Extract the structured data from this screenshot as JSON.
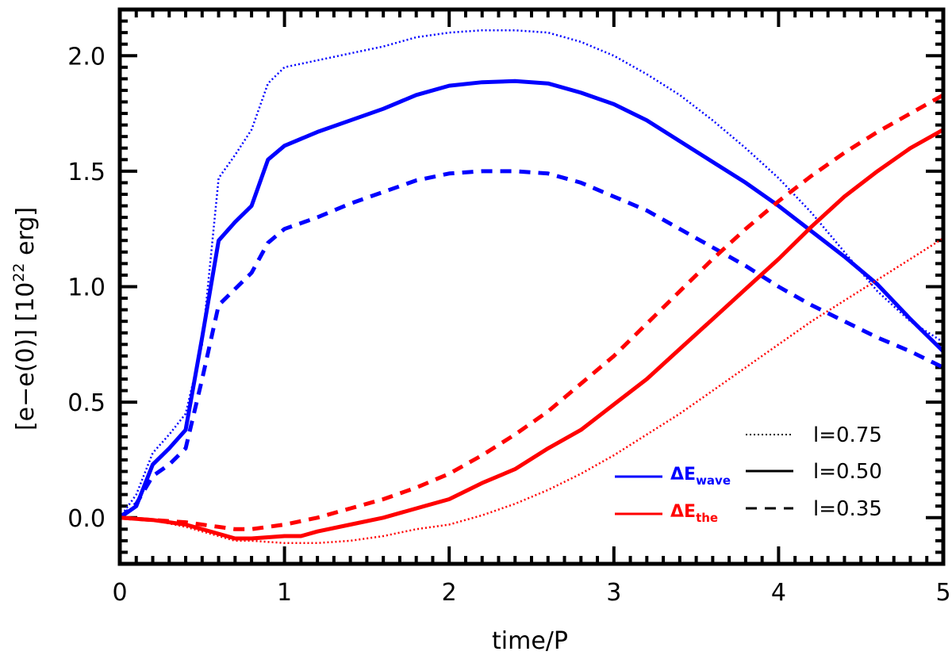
{
  "chart_data": {
    "type": "line",
    "title": "",
    "xlabel": "time/P",
    "ylabel_main": "[e−e(0)] [10",
    "ylabel_exp": "22",
    "ylabel_unit": " erg]",
    "xlim": [
      0,
      5
    ],
    "ylim": [
      -0.2,
      2.2
    ],
    "xticks": [
      0,
      1,
      2,
      3,
      4,
      5
    ],
    "xtick_labels": [
      "0",
      "1",
      "2",
      "3",
      "4",
      "5"
    ],
    "yticks": [
      0.0,
      0.5,
      1.0,
      1.5,
      2.0
    ],
    "ytick_labels": [
      "0.0",
      "0.5",
      "1.0",
      "1.5",
      "2.0"
    ],
    "colors": {
      "wave": "#0000ff",
      "the": "#ff0000",
      "axis": "#000000"
    },
    "legend": {
      "placement": "bottom-right",
      "styles": [
        {
          "label": "l=0.75",
          "dash": "dotted"
        },
        {
          "label": "l=0.50",
          "dash": "solid"
        },
        {
          "label": "l=0.35",
          "dash": "dashed"
        }
      ],
      "colors": [
        {
          "base": "ΔE",
          "sub": "wave",
          "color": "#0000ff"
        },
        {
          "base": "ΔE",
          "sub": "the",
          "color": "#ff0000"
        }
      ]
    },
    "series": [
      {
        "name": "ΔE_wave l=0.75",
        "color": "#0000ff",
        "dash": "dotted",
        "x": [
          0,
          0.1,
          0.2,
          0.3,
          0.4,
          0.5,
          0.6,
          0.7,
          0.8,
          0.9,
          1.0,
          1.2,
          1.4,
          1.6,
          1.8,
          2.0,
          2.2,
          2.4,
          2.6,
          2.8,
          3.0,
          3.2,
          3.4,
          3.6,
          3.8,
          4.0,
          4.2,
          4.4,
          4.6,
          4.8,
          5.0
        ],
        "y": [
          0.0,
          0.1,
          0.28,
          0.36,
          0.45,
          0.75,
          1.47,
          1.57,
          1.68,
          1.88,
          1.95,
          1.98,
          2.01,
          2.04,
          2.08,
          2.1,
          2.11,
          2.11,
          2.1,
          2.06,
          2.0,
          1.92,
          1.83,
          1.72,
          1.6,
          1.47,
          1.32,
          1.15,
          0.98,
          0.85,
          0.76
        ]
      },
      {
        "name": "ΔE_wave l=0.50",
        "color": "#0000ff",
        "dash": "solid",
        "x": [
          0,
          0.1,
          0.2,
          0.3,
          0.4,
          0.5,
          0.6,
          0.7,
          0.8,
          0.9,
          1.0,
          1.2,
          1.4,
          1.6,
          1.8,
          2.0,
          2.2,
          2.4,
          2.6,
          2.8,
          3.0,
          3.2,
          3.4,
          3.6,
          3.8,
          4.0,
          4.2,
          4.4,
          4.6,
          4.8,
          5.0
        ],
        "y": [
          0.0,
          0.05,
          0.23,
          0.3,
          0.38,
          0.78,
          1.2,
          1.28,
          1.35,
          1.55,
          1.61,
          1.67,
          1.72,
          1.77,
          1.83,
          1.87,
          1.885,
          1.89,
          1.88,
          1.84,
          1.79,
          1.72,
          1.63,
          1.54,
          1.45,
          1.35,
          1.24,
          1.13,
          1.01,
          0.86,
          0.72
        ]
      },
      {
        "name": "ΔE_wave l=0.35",
        "color": "#0000ff",
        "dash": "dashed",
        "x": [
          0,
          0.1,
          0.2,
          0.3,
          0.4,
          0.5,
          0.6,
          0.7,
          0.8,
          0.9,
          1.0,
          1.2,
          1.4,
          1.6,
          1.8,
          2.0,
          2.2,
          2.4,
          2.6,
          2.8,
          3.0,
          3.2,
          3.4,
          3.6,
          3.8,
          4.0,
          4.2,
          4.4,
          4.6,
          4.8,
          5.0
        ],
        "y": [
          0.0,
          0.06,
          0.18,
          0.23,
          0.3,
          0.6,
          0.92,
          0.99,
          1.06,
          1.19,
          1.25,
          1.3,
          1.36,
          1.41,
          1.46,
          1.49,
          1.5,
          1.5,
          1.49,
          1.45,
          1.39,
          1.33,
          1.25,
          1.17,
          1.09,
          1.0,
          0.92,
          0.85,
          0.78,
          0.72,
          0.65
        ]
      },
      {
        "name": "ΔE_the l=0.75",
        "color": "#ff0000",
        "dash": "dotted",
        "x": [
          0,
          0.2,
          0.4,
          0.6,
          0.7,
          0.8,
          1.0,
          1.2,
          1.4,
          1.6,
          1.8,
          2.0,
          2.2,
          2.4,
          2.6,
          2.8,
          3.0,
          3.2,
          3.4,
          3.6,
          3.8,
          4.0,
          4.2,
          4.4,
          4.6,
          4.8,
          5.0
        ],
        "y": [
          0.0,
          -0.01,
          -0.04,
          -0.08,
          -0.1,
          -0.1,
          -0.11,
          -0.11,
          -0.1,
          -0.08,
          -0.05,
          -0.03,
          0.01,
          0.06,
          0.12,
          0.19,
          0.27,
          0.36,
          0.45,
          0.55,
          0.65,
          0.75,
          0.85,
          0.94,
          1.03,
          1.12,
          1.21
        ]
      },
      {
        "name": "ΔE_the l=0.50",
        "color": "#ff0000",
        "dash": "solid",
        "x": [
          0,
          0.2,
          0.4,
          0.6,
          0.7,
          0.8,
          1.0,
          1.1,
          1.2,
          1.4,
          1.6,
          1.8,
          2.0,
          2.2,
          2.4,
          2.6,
          2.8,
          3.0,
          3.2,
          3.4,
          3.6,
          3.8,
          4.0,
          4.2,
          4.4,
          4.6,
          4.8,
          5.0
        ],
        "y": [
          0.0,
          -0.01,
          -0.03,
          -0.07,
          -0.09,
          -0.09,
          -0.08,
          -0.08,
          -0.06,
          -0.03,
          0.0,
          0.04,
          0.08,
          0.15,
          0.21,
          0.3,
          0.38,
          0.49,
          0.6,
          0.73,
          0.86,
          0.99,
          1.12,
          1.26,
          1.39,
          1.5,
          1.6,
          1.68
        ]
      },
      {
        "name": "ΔE_the l=0.35",
        "color": "#ff0000",
        "dash": "dashed",
        "x": [
          0,
          0.2,
          0.4,
          0.6,
          0.7,
          0.8,
          1.0,
          1.2,
          1.4,
          1.6,
          1.8,
          2.0,
          2.2,
          2.4,
          2.6,
          2.8,
          3.0,
          3.2,
          3.4,
          3.6,
          3.8,
          4.0,
          4.2,
          4.4,
          4.6,
          4.8,
          5.0
        ],
        "y": [
          0.0,
          -0.01,
          -0.02,
          -0.04,
          -0.05,
          -0.05,
          -0.03,
          0.0,
          0.04,
          0.08,
          0.13,
          0.19,
          0.27,
          0.36,
          0.46,
          0.58,
          0.7,
          0.84,
          0.98,
          1.12,
          1.25,
          1.37,
          1.48,
          1.58,
          1.67,
          1.75,
          1.83
        ]
      }
    ]
  }
}
